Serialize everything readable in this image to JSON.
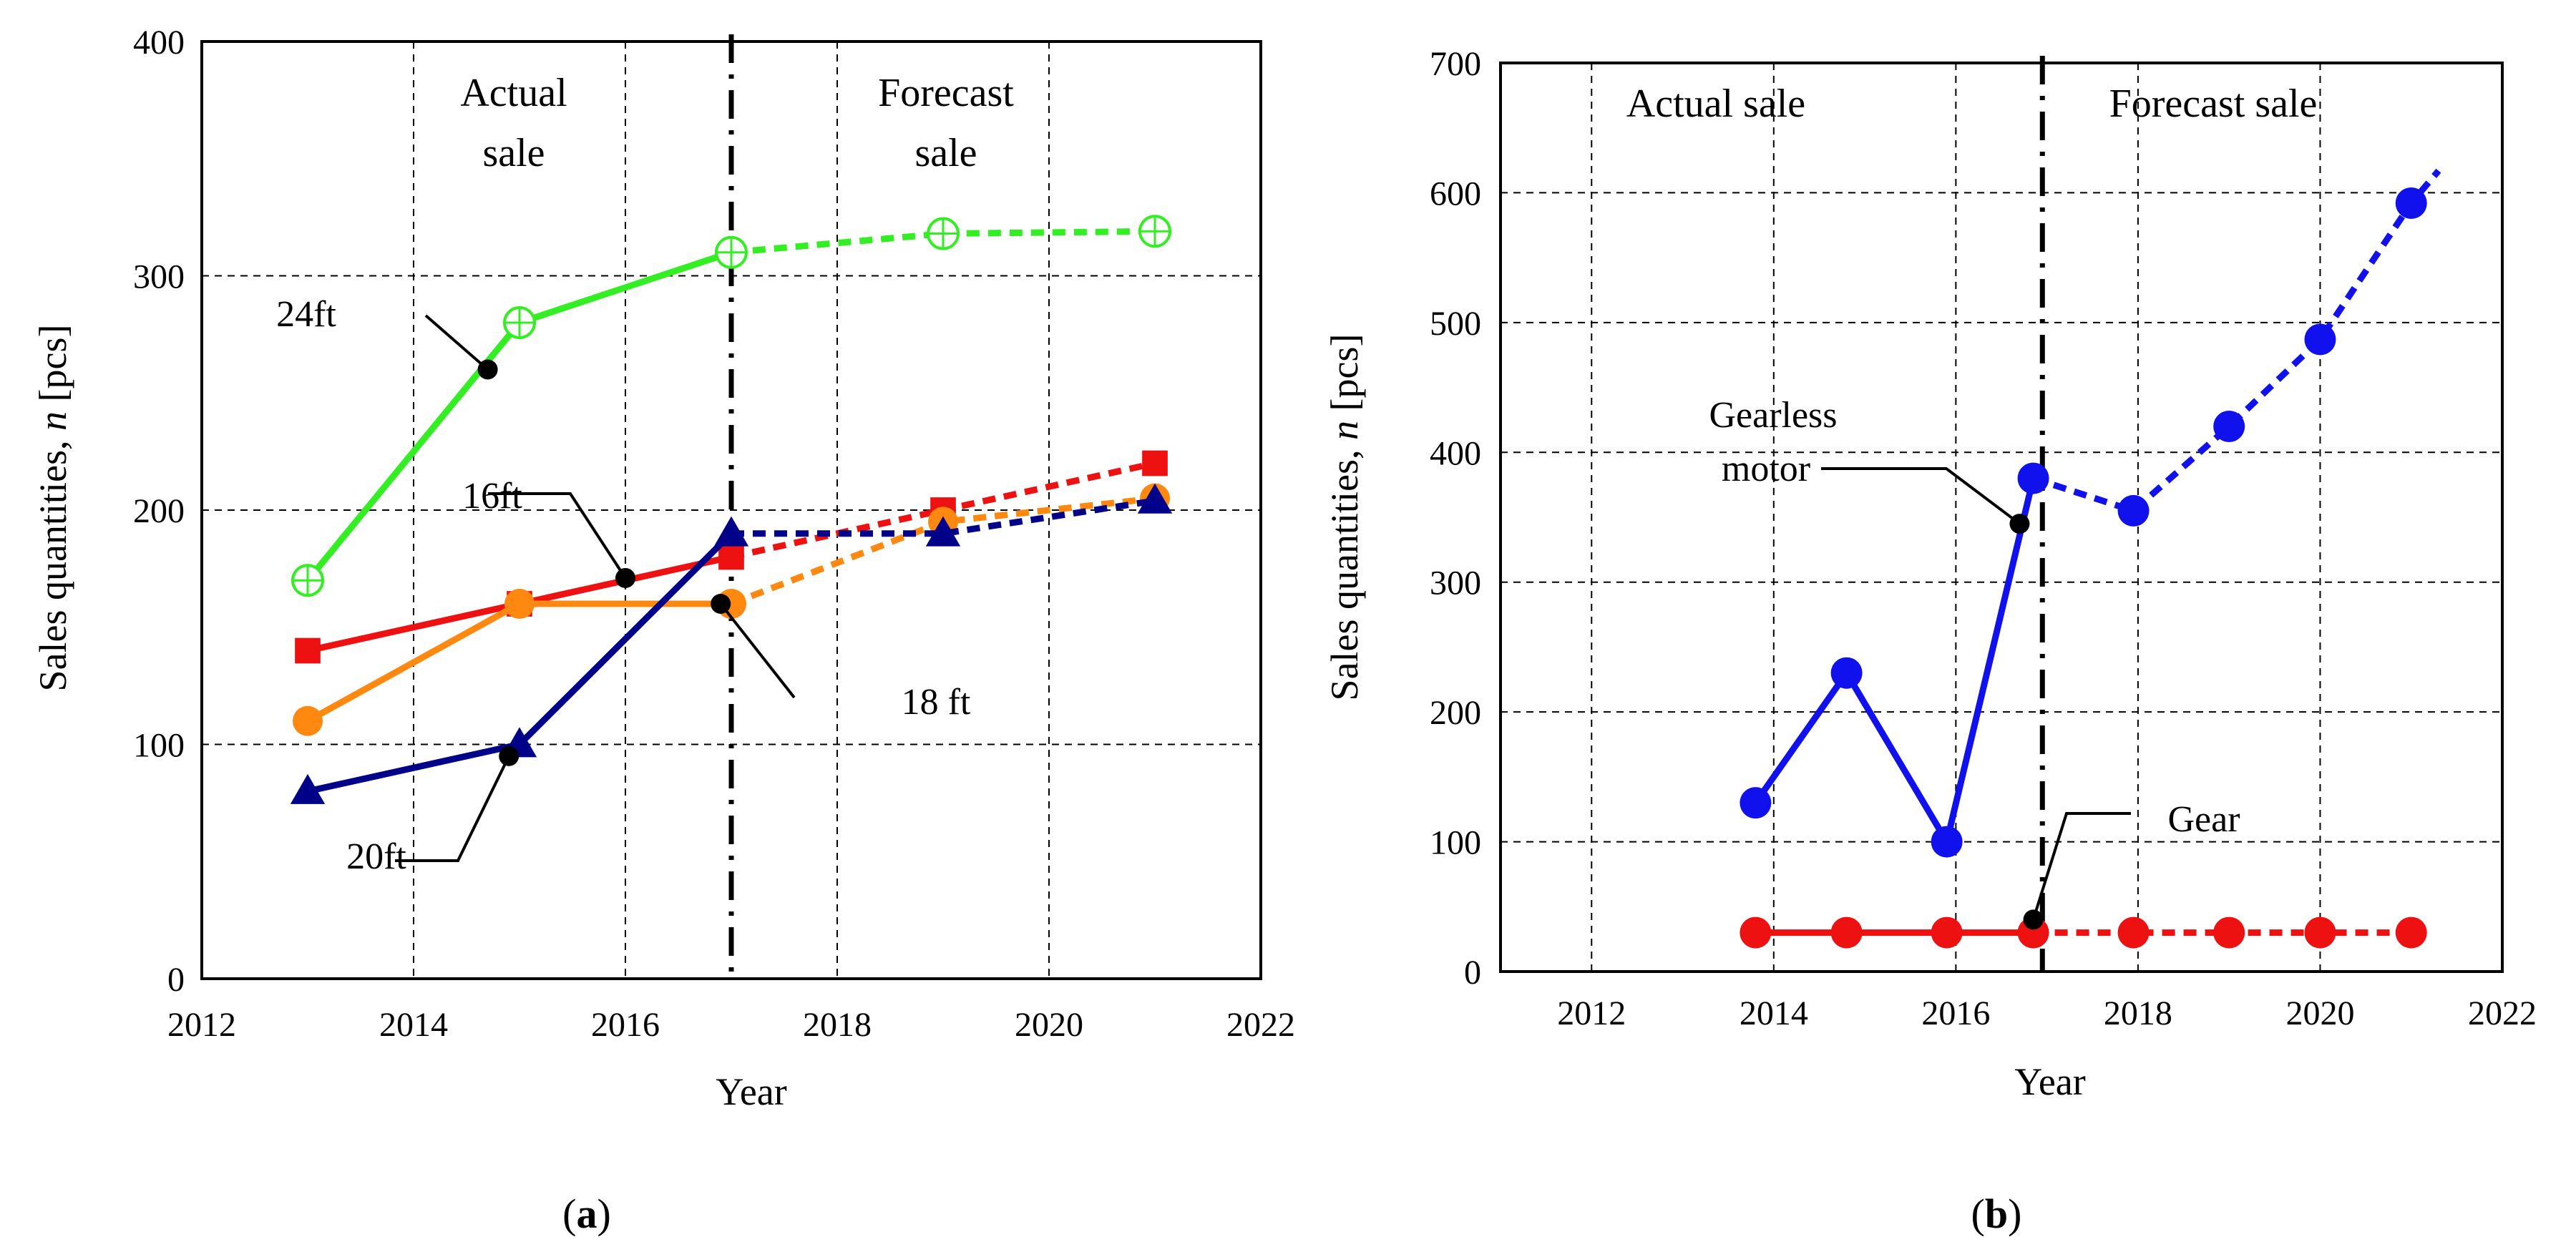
{
  "figure_labels": {
    "a_open": "(",
    "a_letter": "a",
    "a_close": ")",
    "b_open": "(",
    "b_letter": "b",
    "b_close": ")"
  },
  "chart_data": [
    {
      "id": "a",
      "type": "line",
      "xlabel": "Year",
      "ylabel_main": "Sales quantities, ",
      "ylabel_var": "n",
      "ylabel_unit": " [pcs]",
      "xlim": [
        2012,
        2022
      ],
      "ylim": [
        0,
        400
      ],
      "xticks": [
        2012,
        2014,
        2016,
        2018,
        2020,
        2022
      ],
      "yticks": [
        0,
        100,
        200,
        300,
        400
      ],
      "grid": true,
      "divider_year": 2017,
      "region_labels": {
        "actual_line1": "Actual",
        "actual_line2": "sale",
        "forecast_line1": "Forecast",
        "forecast_line2": "sale"
      },
      "series": [
        {
          "name": "24ft",
          "color": "#33ee22",
          "marker": "circle-plus",
          "actual": {
            "x": [
              2013,
              2015,
              2017
            ],
            "y": [
              170,
              280,
              310
            ]
          },
          "forecast": {
            "x": [
              2017,
              2019,
              2021
            ],
            "y": [
              310,
              318,
              319
            ]
          }
        },
        {
          "name": "16ft",
          "color": "#ee1111",
          "marker": "square",
          "actual": {
            "x": [
              2013,
              2015,
              2017
            ],
            "y": [
              140,
              160,
              180
            ]
          },
          "forecast": {
            "x": [
              2017,
              2019,
              2021
            ],
            "y": [
              180,
              200,
              220
            ]
          }
        },
        {
          "name": "18 ft",
          "color": "#ff8811",
          "marker": "circle",
          "actual": {
            "x": [
              2013,
              2015,
              2017
            ],
            "y": [
              110,
              160,
              160
            ]
          },
          "forecast": {
            "x": [
              2017,
              2019,
              2021
            ],
            "y": [
              160,
              195,
              205
            ]
          }
        },
        {
          "name": "20ft",
          "color": "#000088",
          "marker": "triangle",
          "actual": {
            "x": [
              2013,
              2015,
              2017
            ],
            "y": [
              80,
              100,
              190
            ]
          },
          "forecast": {
            "x": [
              2017,
              2019,
              2021
            ],
            "y": [
              190,
              190,
              204
            ]
          }
        }
      ],
      "callouts": [
        {
          "label": "24ft",
          "point": [
            2014.7,
            260
          ]
        },
        {
          "label": "16ft",
          "point": [
            2016,
            171
          ]
        },
        {
          "label": "18 ft",
          "point": [
            2016.9,
            160
          ]
        },
        {
          "label": "20ft",
          "point": [
            2014.9,
            95
          ]
        }
      ]
    },
    {
      "id": "b",
      "type": "line",
      "xlabel": "Year",
      "ylabel_main": "Sales quantities, ",
      "ylabel_var": "n",
      "ylabel_unit": " [pcs]",
      "xlim": [
        2011,
        2022
      ],
      "ylim": [
        0,
        700
      ],
      "xticks": [
        2012,
        2014,
        2016,
        2018,
        2020,
        2022
      ],
      "yticks": [
        0,
        100,
        200,
        300,
        400,
        500,
        600,
        700
      ],
      "grid": true,
      "divider_year": 2016.95,
      "region_labels": {
        "actual": "Actual sale",
        "forecast": "Forecast sale"
      },
      "series": [
        {
          "name": "Gearless motor",
          "color": "#1111ee",
          "marker": "circle",
          "actual": {
            "x": [
              2013.8,
              2014.8,
              2015.9,
              2016.85
            ],
            "y": [
              130,
              230,
              100,
              380
            ]
          },
          "forecast": {
            "x": [
              2016.85,
              2017.95,
              2019,
              2020,
              2021,
              2021.3
            ],
            "y": [
              380,
              355,
              420,
              487,
              592,
              617
            ]
          }
        },
        {
          "name": "Gear",
          "color": "#ee1111",
          "marker": "circle",
          "actual": {
            "x": [
              2013.8,
              2014.8,
              2015.9,
              2016.85
            ],
            "y": [
              30,
              30,
              30,
              30
            ]
          },
          "forecast": {
            "x": [
              2016.85,
              2017.95,
              2019,
              2020,
              2021
            ],
            "y": [
              30,
              30,
              30,
              30,
              30
            ]
          }
        }
      ],
      "callouts": [
        {
          "label_line1": "Gearless",
          "label_line2": "motor",
          "point": [
            2016.7,
            345
          ]
        },
        {
          "label": "Gear",
          "point": [
            2016.85,
            40
          ]
        }
      ]
    }
  ]
}
